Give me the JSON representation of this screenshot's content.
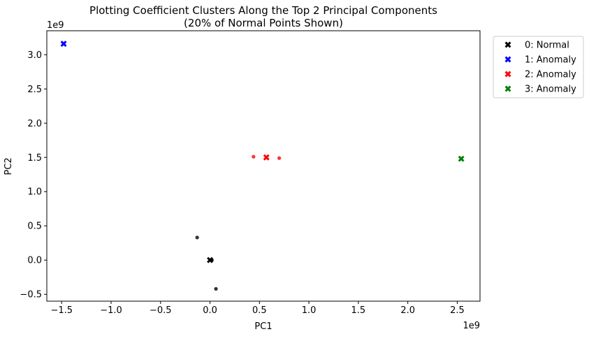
{
  "chart_data": {
    "type": "scatter",
    "title": "Plotting Coefficient Clusters Along the Top 2 Principal Components",
    "subtitle": "(20% of Normal Points Shown)",
    "xlabel": "PC1",
    "ylabel": "PC2",
    "x_exponent_label": "1e9",
    "y_exponent_label": "1e9",
    "xlim": [
      -1.65,
      2.73
    ],
    "ylim": [
      -0.6,
      3.35
    ],
    "xticks": [
      -1.5,
      -1.0,
      -0.5,
      0.0,
      0.5,
      1.0,
      1.5,
      2.0,
      2.5
    ],
    "xtick_labels": [
      "−1.5",
      "−1.0",
      "−0.5",
      "0.0",
      "0.5",
      "1.0",
      "1.5",
      "2.0",
      "2.5"
    ],
    "yticks": [
      -0.5,
      0.0,
      0.5,
      1.0,
      1.5,
      2.0,
      2.5,
      3.0
    ],
    "ytick_labels": [
      "−0.5",
      "0.0",
      "0.5",
      "1.0",
      "1.5",
      "2.0",
      "2.5",
      "3.0"
    ],
    "grid": false,
    "legend_position": "outside-right-top",
    "series": [
      {
        "name": "0: Normal",
        "color": "#000000",
        "centroid": {
          "x": 0.0,
          "y": 0.0
        },
        "points": [
          [
            -0.13,
            0.33
          ],
          [
            0.01,
            0.0
          ],
          [
            0.02,
            0.0
          ],
          [
            0.06,
            -0.42
          ]
        ]
      },
      {
        "name": "1: Anomaly",
        "color": "#0000ff",
        "centroid": {
          "x": -1.48,
          "y": 3.16
        },
        "points": []
      },
      {
        "name": "2: Anomaly",
        "color": "#ff0000",
        "centroid": {
          "x": 0.57,
          "y": 1.5
        },
        "points": [
          [
            0.44,
            1.51
          ],
          [
            0.7,
            1.49
          ]
        ]
      },
      {
        "name": "3: Anomaly",
        "color": "#008000",
        "centroid": {
          "x": 2.54,
          "y": 1.48
        },
        "points": []
      }
    ]
  }
}
